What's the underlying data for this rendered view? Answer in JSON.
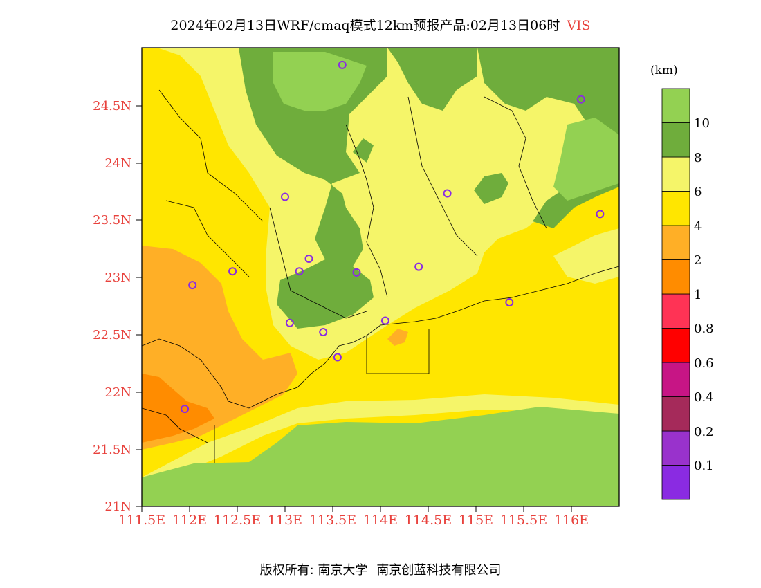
{
  "title": {
    "main": "2024年02月13日WRF/cmaq模式12km预报产品:02月13日06时",
    "variable": "VIS"
  },
  "legend": {
    "unit": "(km)",
    "colors": [
      "#8a2be2",
      "#9932cc",
      "#a52a5a",
      "#c71585",
      "#ff0000",
      "#ff3355",
      "#ff8c00",
      "#ffaf26",
      "#ffe600",
      "#f5f569",
      "#6fad3c",
      "#93d152"
    ],
    "labels": [
      "0.1",
      "0.2",
      "0.4",
      "0.6",
      "0.8",
      "1",
      "2",
      "4",
      "6",
      "8",
      "10"
    ]
  },
  "axes": {
    "lat_labels": [
      "24.5N",
      "24N",
      "23.5N",
      "23N",
      "22.5N",
      "22N",
      "21.5N",
      "21N"
    ],
    "lon_labels": [
      "111.5E",
      "112E",
      "112.5E",
      "113E",
      "113.5E",
      "114E",
      "114.5E",
      "115E",
      "115.5E",
      "116E"
    ]
  },
  "map": {
    "region": "Guangdong",
    "lat_range": [
      21,
      25
    ],
    "lon_range": [
      111.5,
      116.5
    ],
    "stations": [
      {
        "lon": 113.6,
        "lat": 24.85
      },
      {
        "lon": 116.1,
        "lat": 24.55
      },
      {
        "lon": 113.0,
        "lat": 23.7
      },
      {
        "lon": 114.7,
        "lat": 23.73
      },
      {
        "lon": 116.3,
        "lat": 23.55
      },
      {
        "lon": 112.45,
        "lat": 23.05
      },
      {
        "lon": 112.03,
        "lat": 22.93
      },
      {
        "lon": 113.15,
        "lat": 23.05
      },
      {
        "lon": 113.25,
        "lat": 23.16
      },
      {
        "lon": 113.75,
        "lat": 23.04
      },
      {
        "lon": 114.4,
        "lat": 23.09
      },
      {
        "lon": 115.35,
        "lat": 22.78
      },
      {
        "lon": 113.05,
        "lat": 22.6
      },
      {
        "lon": 113.4,
        "lat": 22.52
      },
      {
        "lon": 114.05,
        "lat": 22.62
      },
      {
        "lon": 113.55,
        "lat": 22.3
      },
      {
        "lon": 111.95,
        "lat": 21.85
      }
    ]
  },
  "footer": {
    "copyright": "版权所有: 南京大学",
    "company": "南京创蓝科技有限公司"
  }
}
